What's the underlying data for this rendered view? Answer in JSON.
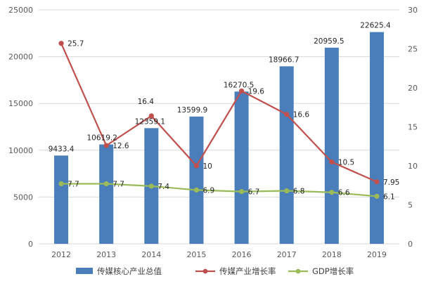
{
  "chart_data": {
    "type": "bar",
    "title": "",
    "xlabel": "",
    "ylabel": "",
    "categories": [
      "2012",
      "2013",
      "2014",
      "2015",
      "2016",
      "2017",
      "2018",
      "2019"
    ],
    "y_left": {
      "ylim": [
        0,
        25000
      ],
      "ticks": [
        0,
        5000,
        10000,
        15000,
        20000,
        25000
      ]
    },
    "y_right": {
      "ylim": [
        0,
        30
      ],
      "ticks": [
        0,
        5,
        10,
        15,
        20,
        25,
        30
      ]
    },
    "grid": true,
    "legend": "bottom",
    "series": [
      {
        "name": "传媒核心产业总值",
        "type": "bar",
        "axis": "left",
        "color": "#4a7ebb",
        "values": [
          9433.4,
          10619.2,
          12359.1,
          13599.9,
          16270.5,
          18966.7,
          20959.5,
          22625.4
        ],
        "labels": [
          "9433.4",
          "10619.2",
          "12359.1",
          "13599.9",
          "16270.5",
          "18966.7",
          "20959.5",
          "22625.4"
        ]
      },
      {
        "name": "传媒产业增长率",
        "type": "line",
        "axis": "right",
        "color": "#c0504d",
        "values": [
          25.7,
          12.6,
          16.4,
          10,
          19.6,
          16.6,
          10.5,
          7.95
        ],
        "labels": [
          "25.7",
          "12.6",
          "16.4",
          "10",
          "19.6",
          "16.6",
          "10.5",
          "7.95"
        ]
      },
      {
        "name": "GDP增长率",
        "type": "line",
        "axis": "right",
        "color": "#9bbb59",
        "values": [
          7.7,
          7.7,
          7.4,
          6.9,
          6.7,
          6.8,
          6.6,
          6.1
        ],
        "labels": [
          "7.7",
          "7.7",
          "7.4",
          "6.9",
          "6.7",
          "6.8",
          "6.6",
          "6.1"
        ]
      }
    ]
  }
}
